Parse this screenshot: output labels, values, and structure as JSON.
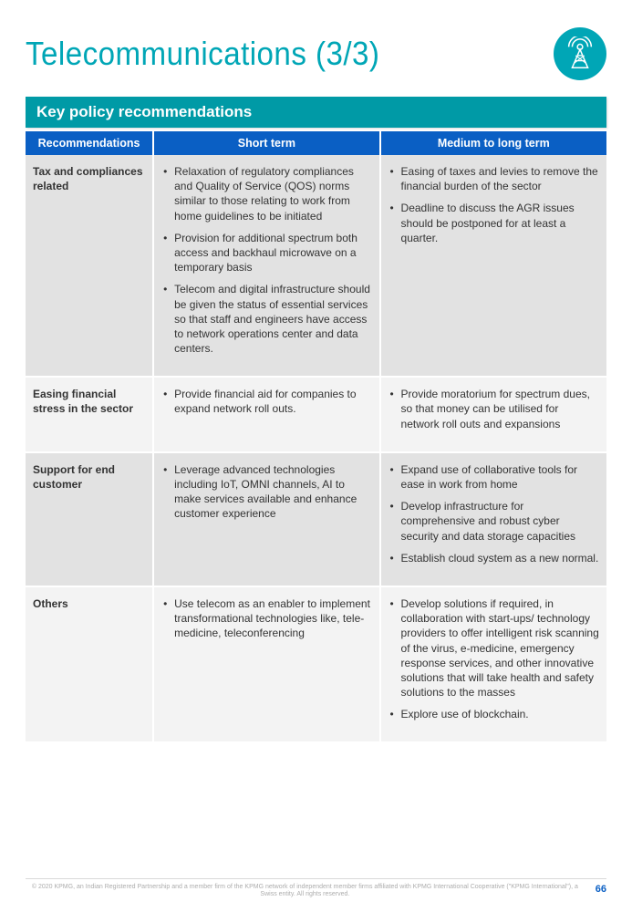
{
  "title": "Telecommunications (3/3)",
  "icon_name": "antenna-tower-icon",
  "section_banner": "Key policy recommendations",
  "colors": {
    "brand_teal": "#00a6b6",
    "banner_teal": "#009aa6",
    "header_blue": "#0a5fc4",
    "row_odd_bg": "#e2e2e2",
    "row_even_bg": "#f3f3f3",
    "footer_grey": "#adadad",
    "page_bg": "#ffffff",
    "text": "#333333"
  },
  "table": {
    "columns": [
      "Recommendations",
      "Short term",
      "Medium to long term"
    ],
    "col_widths_pct": [
      22,
      39,
      39
    ],
    "rows": [
      {
        "label": "Tax and compliances related",
        "short_term": [
          "Relaxation of regulatory compliances and Quality of Service (QOS) norms similar to those relating to work from home guidelines to be initiated",
          "Provision for additional spectrum both access and backhaul microwave on a temporary basis",
          "Telecom and digital infrastructure should be given the status of essential services so that staff and engineers have access to network operations center and data centers."
        ],
        "medium_long": [
          "Easing of taxes and levies to remove the financial burden of the sector",
          "Deadline to discuss the AGR issues should be postponed for at least a quarter."
        ]
      },
      {
        "label": "Easing financial stress in the sector",
        "short_term": [
          "Provide financial aid for companies to expand network roll outs."
        ],
        "medium_long": [
          "Provide moratorium for spectrum dues, so that money can be utilised for network roll outs and expansions"
        ]
      },
      {
        "label": "Support for end customer",
        "short_term": [
          "Leverage advanced technologies including IoT, OMNI channels, AI to make services available and enhance customer experience"
        ],
        "medium_long": [
          "Expand use of collaborative tools for ease in work from home",
          "Develop infrastructure for comprehensive and robust cyber security and data storage capacities",
          "Establish cloud system as a new normal."
        ]
      },
      {
        "label": "Others",
        "short_term": [
          "Use telecom as an enabler to implement transformational technologies like, tele-medicine, teleconferencing"
        ],
        "medium_long": [
          "Develop solutions if required, in collaboration with start-ups/ technology providers to offer intelligent risk scanning of the virus, e-medicine, emergency response services, and other innovative solutions that will take health and safety solutions to the masses",
          "Explore use of blockchain."
        ]
      }
    ]
  },
  "footer": {
    "copyright": "© 2020 KPMG, an Indian Registered Partnership and a member firm of the KPMG network of independent member firms affiliated with KPMG International Cooperative (\"KPMG International\"), a Swiss entity. All rights reserved.",
    "page_number": "66"
  }
}
